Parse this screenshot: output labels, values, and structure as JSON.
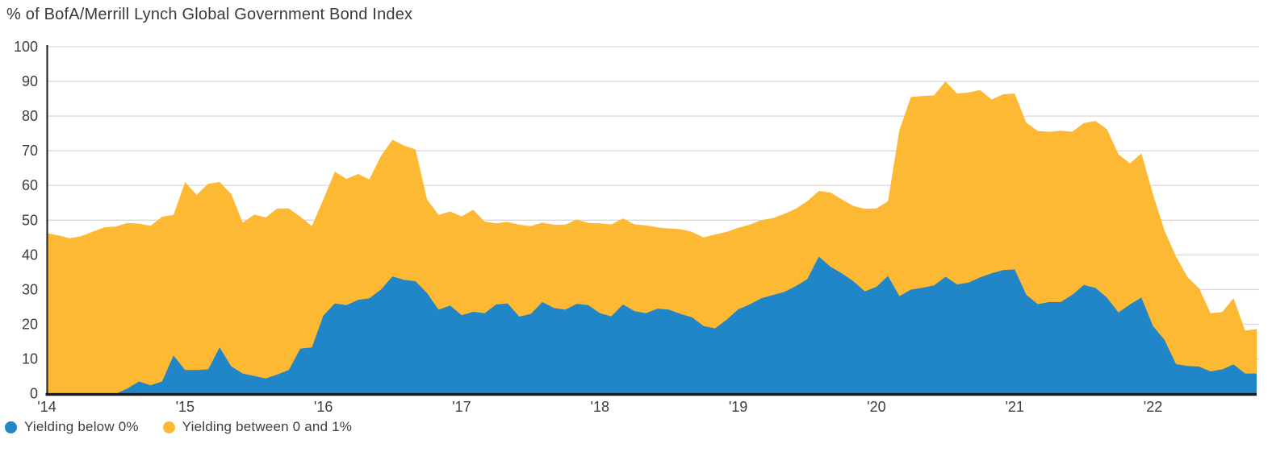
{
  "title": "% of BofA/Merrill Lynch Global Government Bond Index",
  "colors": {
    "below0": "#2186c8",
    "between01": "#fdb933",
    "grid": "#d9d9d9",
    "axis_bottom": "#17191d",
    "axis_left": "#2b2b2b",
    "text": "#3d3d3d",
    "background": "#ffffff"
  },
  "legend": {
    "items": [
      {
        "label": "Yielding below 0%",
        "color": "#2186c8"
      },
      {
        "label": "Yielding between 0 and 1%",
        "color": "#fdb933"
      }
    ]
  },
  "chart_data": {
    "type": "area",
    "stacked": true,
    "title": "% of BofA/Merrill Lynch Global Government Bond Index",
    "frequency": "monthly",
    "x_start": "2014-01",
    "x_end": "2022-10",
    "x_tick_labels": [
      "'14",
      "'15",
      "'16",
      "'17",
      "'18",
      "'19",
      "'20",
      "'21",
      "'22"
    ],
    "x_tick_month_index": [
      0,
      12,
      24,
      36,
      48,
      60,
      72,
      84,
      96
    ],
    "y_ticks": [
      0,
      10,
      20,
      30,
      40,
      50,
      60,
      70,
      80,
      90,
      100
    ],
    "y_tick_labels": [
      "0",
      "10",
      "20",
      "30",
      "40",
      "50",
      "60",
      "70",
      "80",
      "90",
      "100"
    ],
    "ylim": [
      0,
      100
    ],
    "grid": "horizontal",
    "legend_position": "bottom-left",
    "series": [
      {
        "name": "Yielding below 0%",
        "color": "#2186c8",
        "values": [
          0,
          0,
          0,
          0,
          0,
          0,
          0,
          1.5,
          3.5,
          2.4,
          3.5,
          11,
          6.8,
          6.8,
          7,
          13.3,
          7.9,
          5.8,
          5.1,
          4.4,
          5.5,
          6.8,
          13,
          13.3,
          22.5,
          26,
          25.5,
          27,
          27.5,
          30,
          33.8,
          32.8,
          32.4,
          29,
          24.2,
          25.4,
          22.6,
          23.6,
          23.2,
          25.7,
          26,
          22.2,
          23,
          26.4,
          24.7,
          24.2,
          25.9,
          25.5,
          23.2,
          22.3,
          25.7,
          23.8,
          23.2,
          24.5,
          24.2,
          23,
          22,
          19.5,
          18.8,
          21.3,
          24.3,
          25.7,
          27.5,
          28.4,
          29.3,
          31,
          33,
          39.5,
          36.6,
          34.7,
          32.4,
          29.5,
          30.8,
          33.9,
          28.1,
          30,
          30.5,
          31.2,
          33.7,
          31.5,
          32,
          33.5,
          34.7,
          35.6,
          35.8,
          28.5,
          25.8,
          26.4,
          26.4,
          28.5,
          31.3,
          30.5,
          27.7,
          23.4,
          25.7,
          27.7,
          19.5,
          15.5,
          8.5,
          8,
          7.8,
          6.4,
          7,
          8.4,
          5.8,
          5.8
        ]
      },
      {
        "name": "Yielding between 0 and 1%",
        "color": "#fdb933",
        "values": [
          46.3,
          45.6,
          44.8,
          45.4,
          46.7,
          47.9,
          48.2,
          47.7,
          45.5,
          46,
          47.5,
          40.5,
          54.2,
          50.5,
          53.5,
          47.7,
          49.7,
          43.5,
          46.5,
          46.4,
          47.9,
          46.6,
          38,
          35,
          33.5,
          38,
          36.4,
          36.3,
          34.3,
          38.5,
          39.4,
          38.7,
          38,
          27,
          27.3,
          27.1,
          28.5,
          29.4,
          26.4,
          23.4,
          23.5,
          26.5,
          25.3,
          22.9,
          24,
          24.5,
          24.3,
          23.7,
          25.9,
          26.5,
          24.8,
          25,
          25.3,
          23.4,
          23.4,
          24.4,
          24.6,
          25.5,
          27.1,
          25.3,
          23.5,
          23,
          22.5,
          22.2,
          22.5,
          22.3,
          22.5,
          18.9,
          21.4,
          21.3,
          21.7,
          23.8,
          22.6,
          21.6,
          47.9,
          55.5,
          55.3,
          54.8,
          56.3,
          55,
          54.8,
          54,
          50.1,
          50.7,
          50.7,
          49.6,
          49.9,
          49.1,
          49.4,
          47,
          46.7,
          48.1,
          48.6,
          45.6,
          40.7,
          41.6,
          38,
          31.5,
          31,
          25.6,
          22.6,
          16.8,
          16.5,
          19.1,
          12.4,
          12.8
        ]
      }
    ]
  }
}
